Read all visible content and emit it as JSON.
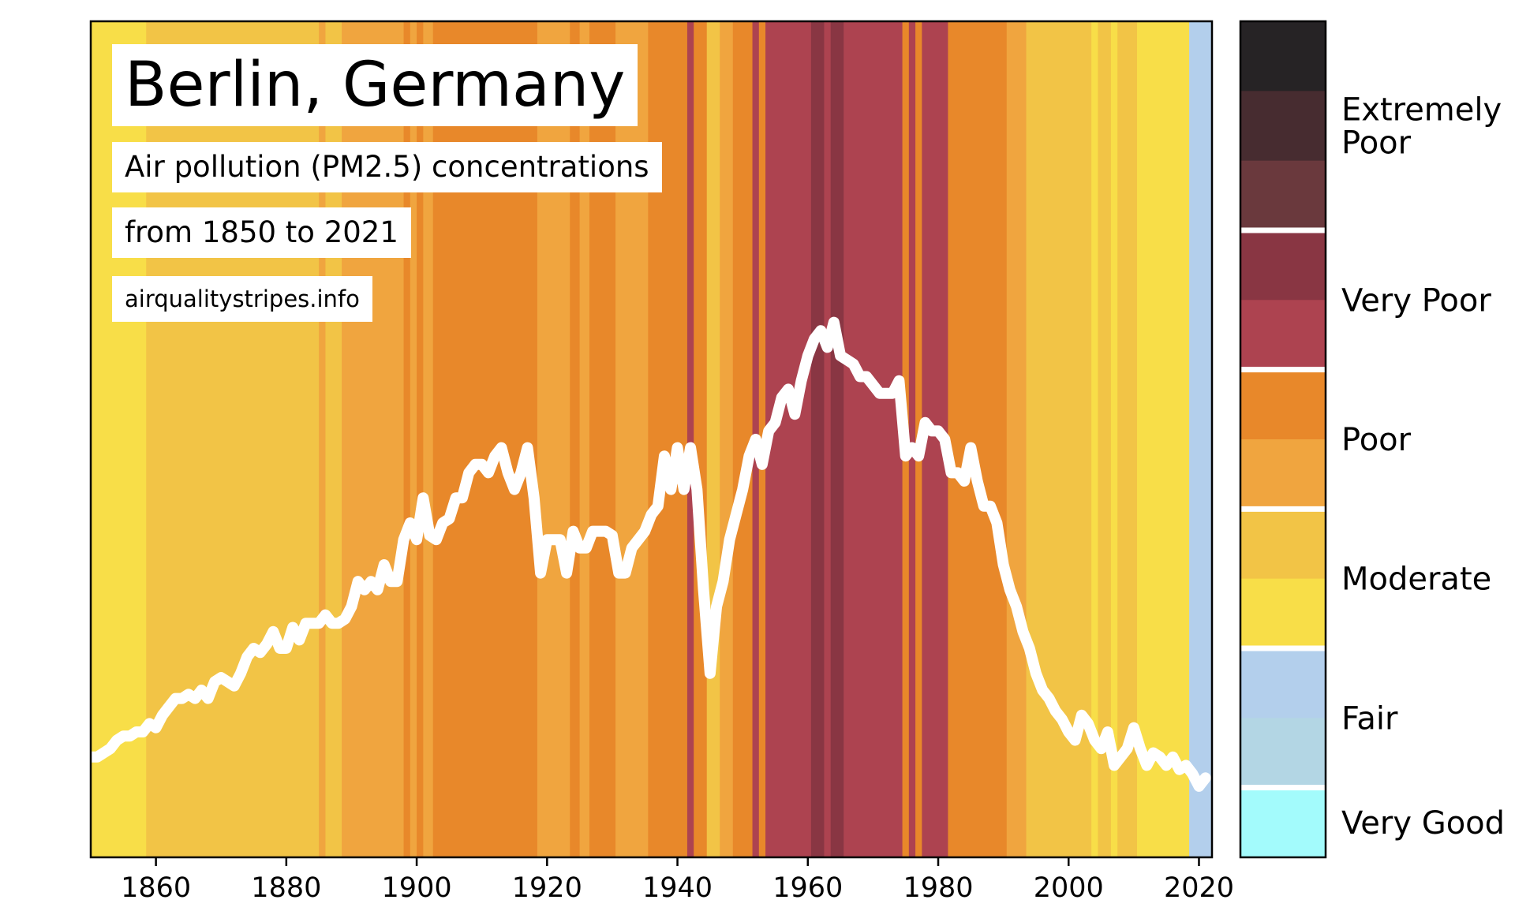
{
  "title": "Berlin, Germany",
  "subtitle": "Air pollution (PM2.5) concentrations",
  "range_text": "from 1850 to 2021",
  "source": "airqualitystripes.info",
  "chart_data": {
    "type": "stripes-line",
    "x_range": [
      1850,
      2022
    ],
    "x_ticks": [
      "1860",
      "1880",
      "1900",
      "1920",
      "1940",
      "1960",
      "1980",
      "2000",
      "2020"
    ],
    "x_tick_values": [
      1860,
      1880,
      1900,
      1920,
      1940,
      1960,
      1980,
      2000,
      2020
    ],
    "line_color": "#ffffff",
    "stripe_colors": {
      "fair": "#b3cfec",
      "moderate_light": "#f8de48",
      "moderate_dark": "#f2c446",
      "poor_light": "#f0a53f",
      "poor_dark": "#e8882a",
      "verypoor_light": "#ad4350",
      "verypoor_dark": "#893643"
    },
    "stripes": [
      {
        "from": 1850,
        "to": 1858.5,
        "color": "moderate_light"
      },
      {
        "from": 1858.5,
        "to": 1860,
        "color": "moderate_dark"
      },
      {
        "from": 1860,
        "to": 1885,
        "color": "moderate_dark"
      },
      {
        "from": 1885,
        "to": 1886,
        "color": "poor_light"
      },
      {
        "from": 1886,
        "to": 1888.5,
        "color": "moderate_dark"
      },
      {
        "from": 1888.5,
        "to": 1898,
        "color": "poor_light"
      },
      {
        "from": 1898,
        "to": 1899,
        "color": "poor_dark"
      },
      {
        "from": 1899,
        "to": 1900,
        "color": "poor_light"
      },
      {
        "from": 1900,
        "to": 1901,
        "color": "poor_dark"
      },
      {
        "from": 1901,
        "to": 1902.5,
        "color": "poor_light"
      },
      {
        "from": 1902.5,
        "to": 1918.5,
        "color": "poor_dark"
      },
      {
        "from": 1918.5,
        "to": 1923.5,
        "color": "poor_light"
      },
      {
        "from": 1923.5,
        "to": 1925,
        "color": "poor_dark"
      },
      {
        "from": 1925,
        "to": 1926.5,
        "color": "poor_light"
      },
      {
        "from": 1926.5,
        "to": 1930.5,
        "color": "poor_dark"
      },
      {
        "from": 1930.5,
        "to": 1935.5,
        "color": "poor_light"
      },
      {
        "from": 1935.5,
        "to": 1941.5,
        "color": "poor_dark"
      },
      {
        "from": 1941.5,
        "to": 1942.5,
        "color": "verypoor_light"
      },
      {
        "from": 1942.5,
        "to": 1944.5,
        "color": "poor_dark"
      },
      {
        "from": 1944.5,
        "to": 1946.5,
        "color": "moderate_dark"
      },
      {
        "from": 1946.5,
        "to": 1948.5,
        "color": "poor_light"
      },
      {
        "from": 1948.5,
        "to": 1951.5,
        "color": "poor_dark"
      },
      {
        "from": 1951.5,
        "to": 1952.5,
        "color": "verypoor_light"
      },
      {
        "from": 1952.5,
        "to": 1953.5,
        "color": "poor_dark"
      },
      {
        "from": 1953.5,
        "to": 1960.5,
        "color": "verypoor_light"
      },
      {
        "from": 1960.5,
        "to": 1962.5,
        "color": "verypoor_dark"
      },
      {
        "from": 1962.5,
        "to": 1963.5,
        "color": "verypoor_light"
      },
      {
        "from": 1963.5,
        "to": 1965.5,
        "color": "verypoor_dark"
      },
      {
        "from": 1965.5,
        "to": 1974.5,
        "color": "verypoor_light"
      },
      {
        "from": 1974.5,
        "to": 1975.5,
        "color": "poor_dark"
      },
      {
        "from": 1975.5,
        "to": 1976.5,
        "color": "verypoor_light"
      },
      {
        "from": 1976.5,
        "to": 1977.5,
        "color": "poor_dark"
      },
      {
        "from": 1977.5,
        "to": 1981.5,
        "color": "verypoor_light"
      },
      {
        "from": 1981.5,
        "to": 1990.5,
        "color": "poor_dark"
      },
      {
        "from": 1990.5,
        "to": 1993.5,
        "color": "poor_light"
      },
      {
        "from": 1993.5,
        "to": 2003.5,
        "color": "moderate_dark"
      },
      {
        "from": 2003.5,
        "to": 2004.5,
        "color": "moderate_light"
      },
      {
        "from": 2004.5,
        "to": 2006.5,
        "color": "moderate_dark"
      },
      {
        "from": 2006.5,
        "to": 2007.5,
        "color": "moderate_light"
      },
      {
        "from": 2007.5,
        "to": 2010.5,
        "color": "moderate_dark"
      },
      {
        "from": 2010.5,
        "to": 2018.5,
        "color": "moderate_light"
      },
      {
        "from": 2018.5,
        "to": 2022,
        "color": "fair"
      }
    ],
    "line": [
      [
        1850,
        0.12
      ],
      [
        1851,
        0.12
      ],
      [
        1852,
        0.125
      ],
      [
        1853,
        0.13
      ],
      [
        1854,
        0.14
      ],
      [
        1855,
        0.145
      ],
      [
        1856,
        0.145
      ],
      [
        1857,
        0.15
      ],
      [
        1858,
        0.15
      ],
      [
        1859,
        0.16
      ],
      [
        1860,
        0.155
      ],
      [
        1861,
        0.17
      ],
      [
        1862,
        0.18
      ],
      [
        1863,
        0.19
      ],
      [
        1864,
        0.19
      ],
      [
        1865,
        0.195
      ],
      [
        1866,
        0.19
      ],
      [
        1867,
        0.2
      ],
      [
        1868,
        0.19
      ],
      [
        1869,
        0.21
      ],
      [
        1870,
        0.215
      ],
      [
        1871,
        0.21
      ],
      [
        1872,
        0.205
      ],
      [
        1873,
        0.22
      ],
      [
        1874,
        0.24
      ],
      [
        1875,
        0.25
      ],
      [
        1876,
        0.245
      ],
      [
        1877,
        0.255
      ],
      [
        1878,
        0.27
      ],
      [
        1879,
        0.25
      ],
      [
        1880,
        0.25
      ],
      [
        1881,
        0.275
      ],
      [
        1882,
        0.26
      ],
      [
        1883,
        0.28
      ],
      [
        1884,
        0.28
      ],
      [
        1885,
        0.28
      ],
      [
        1886,
        0.29
      ],
      [
        1887,
        0.28
      ],
      [
        1888,
        0.28
      ],
      [
        1889,
        0.285
      ],
      [
        1890,
        0.3
      ],
      [
        1891,
        0.33
      ],
      [
        1892,
        0.32
      ],
      [
        1893,
        0.33
      ],
      [
        1894,
        0.32
      ],
      [
        1895,
        0.35
      ],
      [
        1896,
        0.33
      ],
      [
        1897,
        0.33
      ],
      [
        1898,
        0.38
      ],
      [
        1899,
        0.4
      ],
      [
        1900,
        0.38
      ],
      [
        1901,
        0.43
      ],
      [
        1902,
        0.385
      ],
      [
        1903,
        0.38
      ],
      [
        1904,
        0.4
      ],
      [
        1905,
        0.405
      ],
      [
        1906,
        0.43
      ],
      [
        1907,
        0.43
      ],
      [
        1908,
        0.46
      ],
      [
        1909,
        0.47
      ],
      [
        1910,
        0.47
      ],
      [
        1911,
        0.46
      ],
      [
        1912,
        0.48
      ],
      [
        1913,
        0.49
      ],
      [
        1914,
        0.46
      ],
      [
        1915,
        0.44
      ],
      [
        1916,
        0.46
      ],
      [
        1917,
        0.49
      ],
      [
        1918,
        0.43
      ],
      [
        1919,
        0.34
      ],
      [
        1920,
        0.38
      ],
      [
        1921,
        0.38
      ],
      [
        1922,
        0.38
      ],
      [
        1923,
        0.34
      ],
      [
        1924,
        0.39
      ],
      [
        1925,
        0.37
      ],
      [
        1926,
        0.37
      ],
      [
        1927,
        0.39
      ],
      [
        1928,
        0.39
      ],
      [
        1929,
        0.39
      ],
      [
        1930,
        0.385
      ],
      [
        1931,
        0.34
      ],
      [
        1932,
        0.34
      ],
      [
        1933,
        0.37
      ],
      [
        1934,
        0.38
      ],
      [
        1935,
        0.39
      ],
      [
        1936,
        0.41
      ],
      [
        1937,
        0.42
      ],
      [
        1938,
        0.48
      ],
      [
        1939,
        0.44
      ],
      [
        1940,
        0.49
      ],
      [
        1941,
        0.44
      ],
      [
        1942,
        0.49
      ],
      [
        1943,
        0.44
      ],
      [
        1944,
        0.32
      ],
      [
        1945,
        0.22
      ],
      [
        1946,
        0.3
      ],
      [
        1947,
        0.33
      ],
      [
        1948,
        0.38
      ],
      [
        1949,
        0.41
      ],
      [
        1950,
        0.44
      ],
      [
        1951,
        0.48
      ],
      [
        1952,
        0.5
      ],
      [
        1953,
        0.47
      ],
      [
        1954,
        0.51
      ],
      [
        1955,
        0.52
      ],
      [
        1956,
        0.55
      ],
      [
        1957,
        0.56
      ],
      [
        1958,
        0.53
      ],
      [
        1959,
        0.57
      ],
      [
        1960,
        0.6
      ],
      [
        1961,
        0.62
      ],
      [
        1962,
        0.63
      ],
      [
        1963,
        0.61
      ],
      [
        1964,
        0.64
      ],
      [
        1965,
        0.6
      ],
      [
        1966,
        0.595
      ],
      [
        1967,
        0.59
      ],
      [
        1968,
        0.575
      ],
      [
        1969,
        0.575
      ],
      [
        1970,
        0.565
      ],
      [
        1971,
        0.555
      ],
      [
        1972,
        0.555
      ],
      [
        1973,
        0.555
      ],
      [
        1974,
        0.57
      ],
      [
        1975,
        0.48
      ],
      [
        1976,
        0.49
      ],
      [
        1977,
        0.48
      ],
      [
        1978,
        0.52
      ],
      [
        1979,
        0.51
      ],
      [
        1980,
        0.51
      ],
      [
        1981,
        0.5
      ],
      [
        1982,
        0.46
      ],
      [
        1983,
        0.46
      ],
      [
        1984,
        0.45
      ],
      [
        1985,
        0.49
      ],
      [
        1986,
        0.45
      ],
      [
        1987,
        0.42
      ],
      [
        1988,
        0.42
      ],
      [
        1989,
        0.4
      ],
      [
        1990,
        0.35
      ],
      [
        1991,
        0.32
      ],
      [
        1992,
        0.3
      ],
      [
        1993,
        0.27
      ],
      [
        1994,
        0.25
      ],
      [
        1995,
        0.22
      ],
      [
        1996,
        0.2
      ],
      [
        1997,
        0.19
      ],
      [
        1998,
        0.175
      ],
      [
        1999,
        0.165
      ],
      [
        2000,
        0.15
      ],
      [
        2001,
        0.14
      ],
      [
        2002,
        0.17
      ],
      [
        2003,
        0.16
      ],
      [
        2004,
        0.14
      ],
      [
        2005,
        0.13
      ],
      [
        2006,
        0.15
      ],
      [
        2007,
        0.11
      ],
      [
        2008,
        0.12
      ],
      [
        2009,
        0.13
      ],
      [
        2010,
        0.155
      ],
      [
        2011,
        0.13
      ],
      [
        2012,
        0.11
      ],
      [
        2013,
        0.125
      ],
      [
        2014,
        0.12
      ],
      [
        2015,
        0.11
      ],
      [
        2016,
        0.12
      ],
      [
        2017,
        0.105
      ],
      [
        2018,
        0.11
      ],
      [
        2019,
        0.1
      ],
      [
        2020,
        0.085
      ],
      [
        2021,
        0.095
      ]
    ],
    "legend": {
      "segments": [
        {
          "color": "#262325",
          "group": "extremely_poor"
        },
        {
          "color": "#472c30",
          "group": "extremely_poor"
        },
        {
          "color": "#6a393d",
          "group": "extremely_poor"
        },
        {
          "color": "#893643",
          "group": "very_poor"
        },
        {
          "color": "#ad4350",
          "group": "very_poor"
        },
        {
          "color": "#e8882a",
          "group": "poor"
        },
        {
          "color": "#f0a53f",
          "group": "poor"
        },
        {
          "color": "#f2c446",
          "group": "moderate"
        },
        {
          "color": "#f8de48",
          "group": "moderate"
        },
        {
          "color": "#b3cfec",
          "group": "fair"
        },
        {
          "color": "#b3d6e4",
          "group": "fair"
        },
        {
          "color": "#a3fbfc",
          "group": "very_good"
        }
      ],
      "categories": [
        {
          "lines": [
            "Extremely",
            "Poor"
          ]
        },
        {
          "lines": [
            "Very Poor"
          ]
        },
        {
          "lines": [
            "Poor"
          ]
        },
        {
          "lines": [
            "Moderate"
          ]
        },
        {
          "lines": [
            "Fair"
          ]
        },
        {
          "lines": [
            "Very Good"
          ]
        }
      ]
    }
  }
}
